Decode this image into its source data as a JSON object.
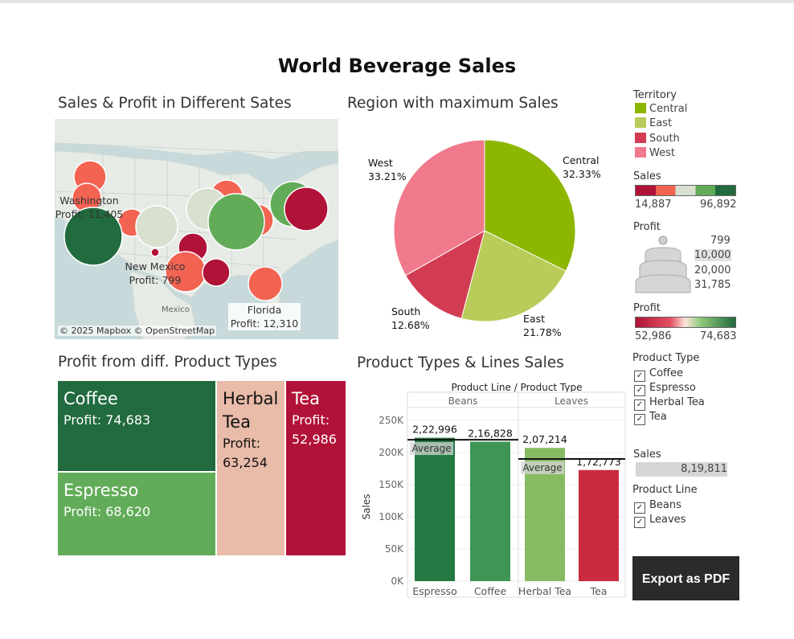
{
  "dashboard": {
    "title": "World Beverage Sales",
    "export_label": "Export as PDF"
  },
  "map": {
    "title": "Sales & Profit in Different Sates",
    "copyright": "© 2025 Mapbox © OpenStreetMap",
    "country_label": "Mexico",
    "labels": [
      {
        "state": "Washington",
        "profit_text": "Profit: 11,405"
      },
      {
        "state": "New Mexico",
        "profit_text": "Profit: 799"
      },
      {
        "state": "Florida",
        "profit_text": "Profit: 12,310"
      }
    ],
    "colors": {
      "land": "#e6ebe6",
      "water": "#c7d9da"
    }
  },
  "pie": {
    "title": "Region with maximum Sales",
    "slices": [
      {
        "name": "Central",
        "pct_label": "32.33%",
        "value": 32.33,
        "color": "#8db600"
      },
      {
        "name": "East",
        "pct_label": "21.78%",
        "value": 21.78,
        "color": "#b9cc59"
      },
      {
        "name": "South",
        "pct_label": "12.68%",
        "value": 12.68,
        "color": "#d23c52"
      },
      {
        "name": "West",
        "pct_label": "33.21%",
        "value": 33.21,
        "color": "#f07a8c"
      }
    ]
  },
  "legends": {
    "territory": {
      "title": "Territory",
      "items": [
        {
          "label": "Central",
          "color": "#8db600"
        },
        {
          "label": "East",
          "color": "#b9cc59"
        },
        {
          "label": "South",
          "color": "#d23c52"
        },
        {
          "label": "West",
          "color": "#f07a8c"
        }
      ]
    },
    "sales_color": {
      "title": "Sales",
      "min": "14,887",
      "max": "96,892"
    },
    "profit_size": {
      "title": "Profit",
      "values": [
        "799",
        "10,000",
        "20,000",
        "31,785"
      ]
    },
    "profit_color": {
      "title": "Profit",
      "min": "52,986",
      "max": "74,683"
    }
  },
  "treemap": {
    "title": "Profit from diff. Product Types",
    "cells": [
      {
        "name": "Coffee",
        "profit_text": "Profit: 74,683",
        "profit": 74683,
        "color": "#216b3e"
      },
      {
        "name": "Espresso",
        "profit_text": "Profit: 68,620",
        "profit": 68620,
        "color": "#62ac59"
      },
      {
        "name": "Herbal Tea",
        "name_line1": "Herbal",
        "name_line2": "Tea",
        "profit_text_line1": "Profit:",
        "profit_text_line2": "63,254",
        "profit": 63254,
        "color": "#e9bba9"
      },
      {
        "name": "Tea",
        "profit_text_line1": "Profit:",
        "profit_text_line2": "52,986",
        "profit": 52986,
        "color": "#b11238"
      }
    ]
  },
  "filters": {
    "product_type": {
      "title": "Product Type",
      "items": [
        "Coffee",
        "Espresso",
        "Herbal Tea",
        "Tea"
      ]
    },
    "sales": {
      "title": "Sales",
      "value": "8,19,811"
    },
    "product_line": {
      "title": "Product Line",
      "items": [
        "Beans",
        "Leaves"
      ]
    },
    "check_mark": "✓"
  },
  "chart_data": [
    {
      "type": "bar",
      "title": "Product Types & Lines Sales",
      "header": "Product Line  /  Product Type",
      "groups": [
        {
          "name": "Beans",
          "average_label": "Average",
          "average": 219912
        },
        {
          "name": "Leaves",
          "average_label": "Average",
          "average": 189994
        }
      ],
      "categories": [
        "Espresso",
        "Coffee",
        "Herbal Tea",
        "Tea"
      ],
      "category_group": [
        "Beans",
        "Beans",
        "Leaves",
        "Leaves"
      ],
      "values": [
        222996,
        216828,
        207214,
        172773
      ],
      "value_labels": [
        "2,22,996",
        "2,16,828",
        "2,07,214",
        "1,72,773"
      ],
      "colors": [
        "#237a42",
        "#3e9556",
        "#86bb63",
        "#c92a40"
      ],
      "ylabel": "Sales",
      "ylim": [
        0,
        260000
      ],
      "yticks": [
        0,
        50000,
        100000,
        150000,
        200000,
        250000
      ],
      "ytick_labels": [
        "0K",
        "50K",
        "100K",
        "150K",
        "200K",
        "250K"
      ],
      "grid": true
    },
    {
      "type": "pie",
      "title": "Region with maximum Sales",
      "categories": [
        "Central",
        "East",
        "South",
        "West"
      ],
      "values": [
        32.33,
        21.78,
        12.68,
        33.21
      ]
    }
  ]
}
